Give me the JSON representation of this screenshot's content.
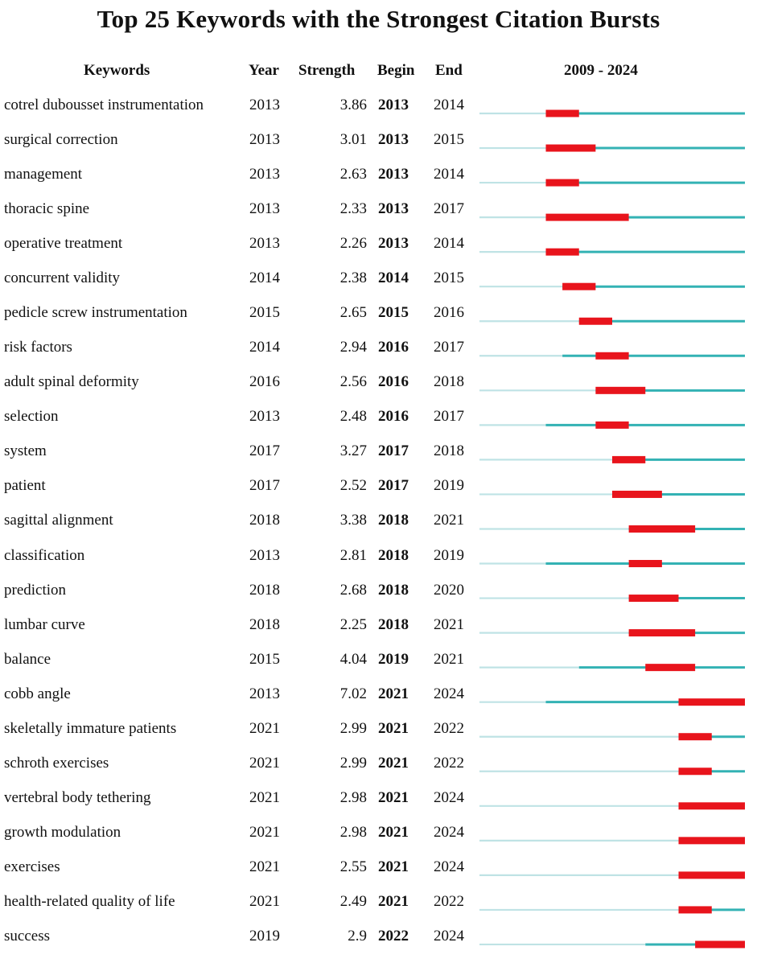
{
  "title": "Top 25 Keywords with the Strongest Citation Bursts",
  "headers": {
    "keywords": "Keywords",
    "year": "Year",
    "strength": "Strength",
    "begin": "Begin",
    "end": "End",
    "range": "2009 - 2024"
  },
  "colors": {
    "faint_line": "#bfe3e5",
    "active_line": "#33b2b4",
    "burst": "#e8141c"
  },
  "chart_data": {
    "type": "table",
    "timeline_start": 2009,
    "timeline_end": 2024,
    "rows": [
      {
        "keyword": "cotrel dubousset instrumentation",
        "year": "2013",
        "strength": "3.86",
        "begin": "2013",
        "end": "2014"
      },
      {
        "keyword": "surgical correction",
        "year": "2013",
        "strength": "3.01",
        "begin": "2013",
        "end": "2015"
      },
      {
        "keyword": "management",
        "year": "2013",
        "strength": "2.63",
        "begin": "2013",
        "end": "2014"
      },
      {
        "keyword": "thoracic spine",
        "year": "2013",
        "strength": "2.33",
        "begin": "2013",
        "end": "2017"
      },
      {
        "keyword": "operative treatment",
        "year": "2013",
        "strength": "2.26",
        "begin": "2013",
        "end": "2014"
      },
      {
        "keyword": "concurrent validity",
        "year": "2014",
        "strength": "2.38",
        "begin": "2014",
        "end": "2015"
      },
      {
        "keyword": "pedicle screw instrumentation",
        "year": "2015",
        "strength": "2.65",
        "begin": "2015",
        "end": "2016"
      },
      {
        "keyword": "risk factors",
        "year": "2014",
        "strength": "2.94",
        "begin": "2016",
        "end": "2017"
      },
      {
        "keyword": "adult spinal deformity",
        "year": "2016",
        "strength": "2.56",
        "begin": "2016",
        "end": "2018"
      },
      {
        "keyword": "selection",
        "year": "2013",
        "strength": "2.48",
        "begin": "2016",
        "end": "2017"
      },
      {
        "keyword": "system",
        "year": "2017",
        "strength": "3.27",
        "begin": "2017",
        "end": "2018"
      },
      {
        "keyword": "patient",
        "year": "2017",
        "strength": "2.52",
        "begin": "2017",
        "end": "2019"
      },
      {
        "keyword": "sagittal alignment",
        "year": "2018",
        "strength": "3.38",
        "begin": "2018",
        "end": "2021"
      },
      {
        "keyword": "classification",
        "year": "2013",
        "strength": "2.81",
        "begin": "2018",
        "end": "2019"
      },
      {
        "keyword": "prediction",
        "year": "2018",
        "strength": "2.68",
        "begin": "2018",
        "end": "2020"
      },
      {
        "keyword": "lumbar curve",
        "year": "2018",
        "strength": "2.25",
        "begin": "2018",
        "end": "2021"
      },
      {
        "keyword": "balance",
        "year": "2015",
        "strength": "4.04",
        "begin": "2019",
        "end": "2021"
      },
      {
        "keyword": "cobb angle",
        "year": "2013",
        "strength": "7.02",
        "begin": "2021",
        "end": "2024"
      },
      {
        "keyword": "skeletally immature patients",
        "year": "2021",
        "strength": "2.99",
        "begin": "2021",
        "end": "2022"
      },
      {
        "keyword": "schroth exercises",
        "year": "2021",
        "strength": "2.99",
        "begin": "2021",
        "end": "2022"
      },
      {
        "keyword": "vertebral body tethering",
        "year": "2021",
        "strength": "2.98",
        "begin": "2021",
        "end": "2024"
      },
      {
        "keyword": "growth modulation",
        "year": "2021",
        "strength": "2.98",
        "begin": "2021",
        "end": "2024"
      },
      {
        "keyword": "exercises",
        "year": "2021",
        "strength": "2.55",
        "begin": "2021",
        "end": "2024"
      },
      {
        "keyword": "health-related quality of life",
        "year": "2021",
        "strength": "2.49",
        "begin": "2021",
        "end": "2022"
      },
      {
        "keyword": "success",
        "year": "2019",
        "strength": "2.9",
        "begin": "2022",
        "end": "2024"
      }
    ]
  }
}
